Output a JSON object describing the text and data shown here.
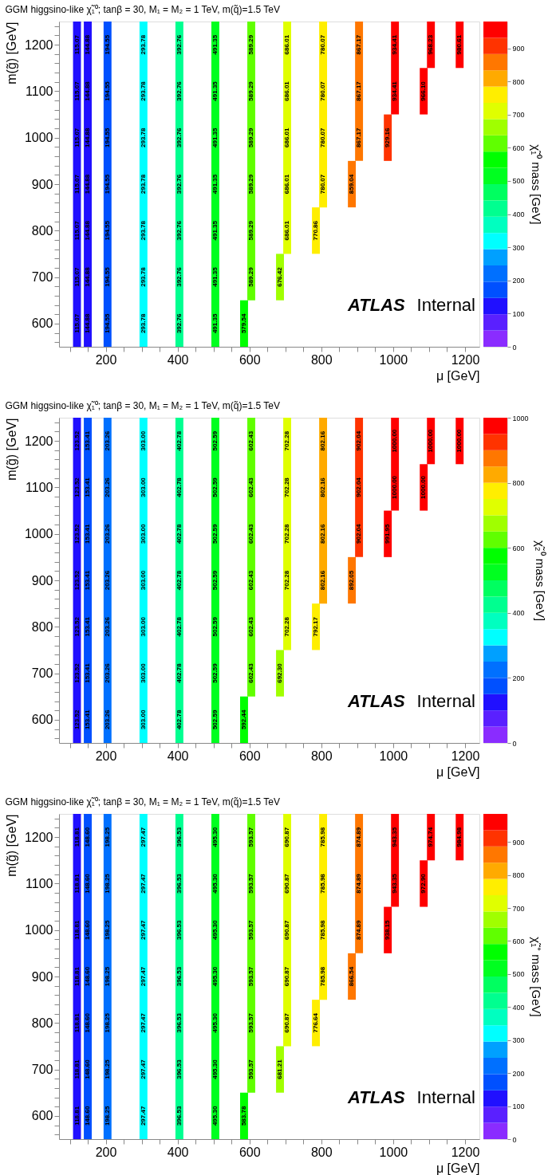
{
  "chart_data": [
    {
      "type": "bar",
      "title": "GGM higgsino-like χ̃₁⁰; tanβ = 30, M₁ = M₂ = 1 TeV, m(q̃)=1.5 TeV",
      "xlabel": "μ [GeV]",
      "ylabel": "m(g̃) [GeV]",
      "clabel": "χ̃₁⁰ mass [GeV]",
      "grid": false,
      "xlim": [
        70,
        1240
      ],
      "ylim": [
        550,
        1250
      ],
      "xticks": [
        {
          "value": 100,
          "label": null
        },
        {
          "value": 150,
          "label": null
        },
        200,
        {
          "value": 250,
          "label": null
        },
        {
          "value": 300,
          "label": null
        },
        {
          "value": 350,
          "label": null
        },
        400,
        {
          "value": 450,
          "label": null
        },
        {
          "value": 500,
          "label": null
        },
        {
          "value": 550,
          "label": null
        },
        600,
        {
          "value": 650,
          "label": null
        },
        {
          "value": 700,
          "label": null
        },
        {
          "value": 750,
          "label": null
        },
        800,
        {
          "value": 850,
          "label": null
        },
        {
          "value": 900,
          "label": null
        },
        {
          "value": 950,
          "label": null
        },
        1000,
        {
          "value": 1050,
          "label": null
        },
        {
          "value": 1100,
          "label": null
        },
        {
          "value": 1150,
          "label": null
        },
        1200
      ],
      "yticks": [
        {
          "value": 560,
          "label": null
        },
        {
          "value": 580,
          "label": null
        },
        600,
        {
          "value": 620,
          "label": null
        },
        {
          "value": 640,
          "label": null
        },
        {
          "value": 660,
          "label": null
        },
        {
          "value": 680,
          "label": null
        },
        700,
        {
          "value": 720,
          "label": null
        },
        {
          "value": 740,
          "label": null
        },
        {
          "value": 760,
          "label": null
        },
        {
          "value": 780,
          "label": null
        },
        800,
        {
          "value": 820,
          "label": null
        },
        {
          "value": 840,
          "label": null
        },
        {
          "value": 860,
          "label": null
        },
        {
          "value": 880,
          "label": null
        },
        900,
        {
          "value": 920,
          "label": null
        },
        {
          "value": 940,
          "label": null
        },
        {
          "value": 960,
          "label": null
        },
        {
          "value": 980,
          "label": null
        },
        1000,
        {
          "value": 1020,
          "label": null
        },
        {
          "value": 1040,
          "label": null
        },
        {
          "value": 1060,
          "label": null
        },
        {
          "value": 1080,
          "label": null
        },
        1100,
        {
          "value": 1120,
          "label": null
        },
        {
          "value": 1140,
          "label": null
        },
        {
          "value": 1160,
          "label": null
        },
        {
          "value": 1180,
          "label": null
        },
        1200,
        {
          "value": 1220,
          "label": null
        },
        {
          "value": 1240,
          "label": null
        }
      ],
      "clim": [
        0,
        980.61
      ],
      "cticks": [
        0,
        100,
        200,
        300,
        400,
        500,
        600,
        700,
        800,
        900
      ],
      "x": [
        120,
        150,
        205,
        305,
        405,
        505,
        585,
        605,
        685,
        705,
        785,
        805,
        885,
        905,
        985,
        1005,
        1085,
        1105,
        1185
      ],
      "base": [
        550,
        550,
        550,
        550,
        550,
        550,
        550,
        650,
        650,
        750,
        750,
        850,
        850,
        950,
        950,
        1050,
        1050,
        1150,
        1150
      ],
      "values": [
        700,
        700,
        700,
        700,
        700,
        700,
        100,
        600,
        100,
        500,
        100,
        400,
        100,
        300,
        100,
        200,
        100,
        100,
        100
      ],
      "colors": [
        "#2010ff",
        "#2010ff",
        "#0050ff",
        "#00ffff",
        "#00ff90",
        "#00ff20",
        "#00ff00",
        "#60ff00",
        "#a0ff00",
        "#e0ff00",
        "#ffee00",
        "#ffee00",
        "#ff7700",
        "#ff7700",
        "#ff3300",
        "#ff0000",
        "#ff0000",
        "#ff0000",
        "#ff0000"
      ],
      "annotations": [
        "ATLAS Internal",
        {
          "text": "115.07",
          "x": 120,
          "y": 600
        },
        {
          "text": "115.07",
          "x": 120,
          "y": 700
        },
        {
          "text": "115.07",
          "x": 120,
          "y": 800
        },
        {
          "text": "115.07",
          "x": 120,
          "y": 900
        },
        {
          "text": "115.07",
          "x": 120,
          "y": 1000
        },
        {
          "text": "115.07",
          "x": 120,
          "y": 1100
        },
        {
          "text": "115.07",
          "x": 120,
          "y": 1200
        },
        {
          "text": "144.88",
          "x": 150,
          "y": 600
        },
        {
          "text": "144.88",
          "x": 150,
          "y": 700
        },
        {
          "text": "144.88",
          "x": 150,
          "y": 800
        },
        {
          "text": "144.88",
          "x": 150,
          "y": 900
        },
        {
          "text": "144.88",
          "x": 150,
          "y": 1000
        },
        {
          "text": "144.88",
          "x": 150,
          "y": 1100
        },
        {
          "text": "144.88",
          "x": 150,
          "y": 1200
        },
        {
          "text": "194.55",
          "x": 205,
          "y": 600
        },
        {
          "text": "194.55",
          "x": 205,
          "y": 700
        },
        {
          "text": "194.55",
          "x": 205,
          "y": 800
        },
        {
          "text": "194.55",
          "x": 205,
          "y": 900
        },
        {
          "text": "194.55",
          "x": 205,
          "y": 1000
        },
        {
          "text": "194.55",
          "x": 205,
          "y": 1100
        },
        {
          "text": "194.55",
          "x": 205,
          "y": 1200
        },
        {
          "text": "293.78",
          "x": 305,
          "y": 600
        },
        {
          "text": "293.78",
          "x": 305,
          "y": 700
        },
        {
          "text": "293.78",
          "x": 305,
          "y": 800
        },
        {
          "text": "293.78",
          "x": 305,
          "y": 900
        },
        {
          "text": "293.78",
          "x": 305,
          "y": 1000
        },
        {
          "text": "293.78",
          "x": 305,
          "y": 1100
        },
        {
          "text": "293.78",
          "x": 305,
          "y": 1200
        },
        {
          "text": "392.76",
          "x": 405,
          "y": 600
        },
        {
          "text": "392.76",
          "x": 405,
          "y": 700
        },
        {
          "text": "392.76",
          "x": 405,
          "y": 800
        },
        {
          "text": "392.76",
          "x": 405,
          "y": 900
        },
        {
          "text": "392.76",
          "x": 405,
          "y": 1000
        },
        {
          "text": "392.76",
          "x": 405,
          "y": 1100
        },
        {
          "text": "392.76",
          "x": 405,
          "y": 1200
        },
        {
          "text": "491.35",
          "x": 505,
          "y": 600
        },
        {
          "text": "491.35",
          "x": 505,
          "y": 700
        },
        {
          "text": "491.35",
          "x": 505,
          "y": 800
        },
        {
          "text": "491.35",
          "x": 505,
          "y": 900
        },
        {
          "text": "491.35",
          "x": 505,
          "y": 1000
        },
        {
          "text": "491.35",
          "x": 505,
          "y": 1100
        },
        {
          "text": "491.35",
          "x": 505,
          "y": 1200
        },
        {
          "text": "579.54",
          "x": 585,
          "y": 600
        },
        {
          "text": "589.29",
          "x": 605,
          "y": 700
        },
        {
          "text": "589.29",
          "x": 605,
          "y": 800
        },
        {
          "text": "589.29",
          "x": 605,
          "y": 900
        },
        {
          "text": "589.29",
          "x": 605,
          "y": 1000
        },
        {
          "text": "589.29",
          "x": 605,
          "y": 1100
        },
        {
          "text": "589.29",
          "x": 605,
          "y": 1200
        },
        {
          "text": "676.42",
          "x": 685,
          "y": 700
        },
        {
          "text": "686.01",
          "x": 705,
          "y": 800
        },
        {
          "text": "686.01",
          "x": 705,
          "y": 900
        },
        {
          "text": "686.01",
          "x": 705,
          "y": 1000
        },
        {
          "text": "686.01",
          "x": 705,
          "y": 1100
        },
        {
          "text": "686.01",
          "x": 705,
          "y": 1200
        },
        {
          "text": "770.86",
          "x": 785,
          "y": 800
        },
        {
          "text": "780.07",
          "x": 805,
          "y": 900
        },
        {
          "text": "780.07",
          "x": 805,
          "y": 1000
        },
        {
          "text": "780.07",
          "x": 805,
          "y": 1100
        },
        {
          "text": "780.07",
          "x": 805,
          "y": 1200
        },
        {
          "text": "859.04",
          "x": 885,
          "y": 900
        },
        {
          "text": "867.17",
          "x": 905,
          "y": 1000
        },
        {
          "text": "867.17",
          "x": 905,
          "y": 1100
        },
        {
          "text": "867.17",
          "x": 905,
          "y": 1200
        },
        {
          "text": "929.16",
          "x": 985,
          "y": 1000
        },
        {
          "text": "934.41",
          "x": 1005,
          "y": 1100
        },
        {
          "text": "934.41",
          "x": 1005,
          "y": 1200
        },
        {
          "text": "966.10",
          "x": 1085,
          "y": 1100
        },
        {
          "text": "968.23",
          "x": 1105,
          "y": 1200
        },
        {
          "text": "980.61",
          "x": 1185,
          "y": 1200
        }
      ]
    },
    {
      "type": "bar",
      "title": "GGM higgsino-like χ̃₁⁰; tanβ = 30, M₁ = M₂ = 1 TeV, m(q̃)=1.5 TeV",
      "xlabel": "μ [GeV]",
      "ylabel": "m(g̃) [GeV]",
      "clabel": "χ̃₂⁰ mass [GeV]",
      "grid": false,
      "xlim": [
        70,
        1240
      ],
      "ylim": [
        550,
        1250
      ],
      "xticks": [
        {
          "value": 100,
          "label": null
        },
        {
          "value": 150,
          "label": null
        },
        200,
        {
          "value": 250,
          "label": null
        },
        {
          "value": 300,
          "label": null
        },
        {
          "value": 350,
          "label": null
        },
        400,
        {
          "value": 450,
          "label": null
        },
        {
          "value": 500,
          "label": null
        },
        {
          "value": 550,
          "label": null
        },
        600,
        {
          "value": 650,
          "label": null
        },
        {
          "value": 700,
          "label": null
        },
        {
          "value": 750,
          "label": null
        },
        800,
        {
          "value": 850,
          "label": null
        },
        {
          "value": 900,
          "label": null
        },
        {
          "value": 950,
          "label": null
        },
        1000,
        {
          "value": 1050,
          "label": null
        },
        {
          "value": 1100,
          "label": null
        },
        {
          "value": 1150,
          "label": null
        },
        1200
      ],
      "yticks": [
        {
          "value": 560,
          "label": null
        },
        {
          "value": 580,
          "label": null
        },
        600,
        {
          "value": 620,
          "label": null
        },
        {
          "value": 640,
          "label": null
        },
        {
          "value": 660,
          "label": null
        },
        {
          "value": 680,
          "label": null
        },
        700,
        {
          "value": 720,
          "label": null
        },
        {
          "value": 740,
          "label": null
        },
        {
          "value": 760,
          "label": null
        },
        {
          "value": 780,
          "label": null
        },
        800,
        {
          "value": 820,
          "label": null
        },
        {
          "value": 840,
          "label": null
        },
        {
          "value": 860,
          "label": null
        },
        {
          "value": 880,
          "label": null
        },
        900,
        {
          "value": 920,
          "label": null
        },
        {
          "value": 940,
          "label": null
        },
        {
          "value": 960,
          "label": null
        },
        {
          "value": 980,
          "label": null
        },
        1000,
        {
          "value": 1020,
          "label": null
        },
        {
          "value": 1040,
          "label": null
        },
        {
          "value": 1060,
          "label": null
        },
        {
          "value": 1080,
          "label": null
        },
        1100,
        {
          "value": 1120,
          "label": null
        },
        {
          "value": 1140,
          "label": null
        },
        {
          "value": 1160,
          "label": null
        },
        {
          "value": 1180,
          "label": null
        },
        1200,
        {
          "value": 1220,
          "label": null
        },
        {
          "value": 1240,
          "label": null
        }
      ],
      "clim": [
        0,
        1000
      ],
      "cticks": [
        0,
        200,
        400,
        600,
        800,
        1000
      ],
      "x": [
        120,
        150,
        205,
        305,
        405,
        505,
        585,
        605,
        685,
        705,
        785,
        805,
        885,
        905,
        985,
        1005,
        1085,
        1105,
        1185
      ],
      "base": [
        550,
        550,
        550,
        550,
        550,
        550,
        550,
        650,
        650,
        750,
        750,
        850,
        850,
        950,
        950,
        1050,
        1050,
        1150,
        1150
      ],
      "values": [
        700,
        700,
        700,
        700,
        700,
        700,
        100,
        600,
        100,
        500,
        100,
        400,
        100,
        300,
        100,
        200,
        100,
        100,
        100
      ],
      "colors": [
        "#2010ff",
        "#0050ff",
        "#0070ff",
        "#00ffff",
        "#00ff90",
        "#00ff20",
        "#00ff00",
        "#60ff00",
        "#a0ff00",
        "#e0ff00",
        "#ffee00",
        "#ffaa00",
        "#ff7700",
        "#ff3300",
        "#ff0000",
        "#ff0000",
        "#ff0000",
        "#ff0000",
        "#ff0000"
      ],
      "annotations": [
        "ATLAS Internal",
        {
          "text": "123.52",
          "x": 120,
          "y": 600
        },
        {
          "text": "123.52",
          "x": 120,
          "y": 700
        },
        {
          "text": "123.52",
          "x": 120,
          "y": 800
        },
        {
          "text": "123.52",
          "x": 120,
          "y": 900
        },
        {
          "text": "123.52",
          "x": 120,
          "y": 1000
        },
        {
          "text": "123.52",
          "x": 120,
          "y": 1100
        },
        {
          "text": "123.52",
          "x": 120,
          "y": 1200
        },
        {
          "text": "153.41",
          "x": 150,
          "y": 600
        },
        {
          "text": "153.41",
          "x": 150,
          "y": 700
        },
        {
          "text": "153.41",
          "x": 150,
          "y": 800
        },
        {
          "text": "153.41",
          "x": 150,
          "y": 900
        },
        {
          "text": "153.41",
          "x": 150,
          "y": 1000
        },
        {
          "text": "153.41",
          "x": 150,
          "y": 1100
        },
        {
          "text": "153.41",
          "x": 150,
          "y": 1200
        },
        {
          "text": "203.26",
          "x": 205,
          "y": 600
        },
        {
          "text": "203.26",
          "x": 205,
          "y": 700
        },
        {
          "text": "203.26",
          "x": 205,
          "y": 800
        },
        {
          "text": "203.26",
          "x": 205,
          "y": 900
        },
        {
          "text": "203.26",
          "x": 205,
          "y": 1000
        },
        {
          "text": "203.26",
          "x": 205,
          "y": 1100
        },
        {
          "text": "203.26",
          "x": 205,
          "y": 1200
        },
        {
          "text": "303.00",
          "x": 305,
          "y": 600
        },
        {
          "text": "303.00",
          "x": 305,
          "y": 700
        },
        {
          "text": "303.00",
          "x": 305,
          "y": 800
        },
        {
          "text": "303.00",
          "x": 305,
          "y": 900
        },
        {
          "text": "303.00",
          "x": 305,
          "y": 1000
        },
        {
          "text": "303.00",
          "x": 305,
          "y": 1100
        },
        {
          "text": "303.00",
          "x": 305,
          "y": 1200
        },
        {
          "text": "402.78",
          "x": 405,
          "y": 600
        },
        {
          "text": "402.78",
          "x": 405,
          "y": 700
        },
        {
          "text": "402.78",
          "x": 405,
          "y": 800
        },
        {
          "text": "402.78",
          "x": 405,
          "y": 900
        },
        {
          "text": "402.78",
          "x": 405,
          "y": 1000
        },
        {
          "text": "402.78",
          "x": 405,
          "y": 1100
        },
        {
          "text": "402.78",
          "x": 405,
          "y": 1200
        },
        {
          "text": "502.59",
          "x": 505,
          "y": 600
        },
        {
          "text": "502.59",
          "x": 505,
          "y": 700
        },
        {
          "text": "502.59",
          "x": 505,
          "y": 800
        },
        {
          "text": "502.59",
          "x": 505,
          "y": 900
        },
        {
          "text": "502.59",
          "x": 505,
          "y": 1000
        },
        {
          "text": "502.59",
          "x": 505,
          "y": 1100
        },
        {
          "text": "502.59",
          "x": 505,
          "y": 1200
        },
        {
          "text": "592.44",
          "x": 585,
          "y": 600
        },
        {
          "text": "602.43",
          "x": 605,
          "y": 700
        },
        {
          "text": "602.43",
          "x": 605,
          "y": 800
        },
        {
          "text": "602.43",
          "x": 605,
          "y": 900
        },
        {
          "text": "602.43",
          "x": 605,
          "y": 1000
        },
        {
          "text": "602.43",
          "x": 605,
          "y": 1100
        },
        {
          "text": "602.43",
          "x": 605,
          "y": 1200
        },
        {
          "text": "692.30",
          "x": 685,
          "y": 700
        },
        {
          "text": "702.28",
          "x": 705,
          "y": 800
        },
        {
          "text": "702.28",
          "x": 705,
          "y": 900
        },
        {
          "text": "702.28",
          "x": 705,
          "y": 1000
        },
        {
          "text": "702.28",
          "x": 705,
          "y": 1100
        },
        {
          "text": "702.28",
          "x": 705,
          "y": 1200
        },
        {
          "text": "792.17",
          "x": 785,
          "y": 800
        },
        {
          "text": "802.16",
          "x": 805,
          "y": 900
        },
        {
          "text": "802.16",
          "x": 805,
          "y": 1000
        },
        {
          "text": "802.16",
          "x": 805,
          "y": 1100
        },
        {
          "text": "802.16",
          "x": 805,
          "y": 1200
        },
        {
          "text": "892.05",
          "x": 885,
          "y": 900
        },
        {
          "text": "902.04",
          "x": 905,
          "y": 1000
        },
        {
          "text": "902.04",
          "x": 905,
          "y": 1100
        },
        {
          "text": "902.04",
          "x": 905,
          "y": 1200
        },
        {
          "text": "991.95",
          "x": 985,
          "y": 1000
        },
        {
          "text": "1000.00",
          "x": 1005,
          "y": 1100
        },
        {
          "text": "1000.00",
          "x": 1005,
          "y": 1200
        },
        {
          "text": "1000.00",
          "x": 1085,
          "y": 1100
        },
        {
          "text": "1000.00",
          "x": 1105,
          "y": 1200
        },
        {
          "text": "1000.00",
          "x": 1185,
          "y": 1200
        }
      ]
    },
    {
      "type": "bar",
      "title": "GGM higgsino-like χ̃₁⁰; tanβ = 30, M₁ = M₂ = 1 TeV, m(q̃)=1.5 TeV",
      "xlabel": "μ [GeV]",
      "ylabel": "m(g̃) [GeV]",
      "clabel": "χ̃₁⁺ mass [GeV]",
      "grid": false,
      "xlim": [
        70,
        1240
      ],
      "ylim": [
        550,
        1250
      ],
      "xticks": [
        {
          "value": 100,
          "label": null
        },
        {
          "value": 150,
          "label": null
        },
        200,
        {
          "value": 250,
          "label": null
        },
        {
          "value": 300,
          "label": null
        },
        {
          "value": 350,
          "label": null
        },
        400,
        {
          "value": 450,
          "label": null
        },
        {
          "value": 500,
          "label": null
        },
        {
          "value": 550,
          "label": null
        },
        600,
        {
          "value": 650,
          "label": null
        },
        {
          "value": 700,
          "label": null
        },
        {
          "value": 750,
          "label": null
        },
        800,
        {
          "value": 850,
          "label": null
        },
        {
          "value": 900,
          "label": null
        },
        {
          "value": 950,
          "label": null
        },
        1000,
        {
          "value": 1050,
          "label": null
        },
        {
          "value": 1100,
          "label": null
        },
        {
          "value": 1150,
          "label": null
        },
        1200
      ],
      "yticks": [
        {
          "value": 560,
          "label": null
        },
        {
          "value": 580,
          "label": null
        },
        600,
        {
          "value": 620,
          "label": null
        },
        {
          "value": 640,
          "label": null
        },
        {
          "value": 660,
          "label": null
        },
        {
          "value": 680,
          "label": null
        },
        700,
        {
          "value": 720,
          "label": null
        },
        {
          "value": 740,
          "label": null
        },
        {
          "value": 760,
          "label": null
        },
        {
          "value": 780,
          "label": null
        },
        800,
        {
          "value": 820,
          "label": null
        },
        {
          "value": 840,
          "label": null
        },
        {
          "value": 860,
          "label": null
        },
        {
          "value": 880,
          "label": null
        },
        900,
        {
          "value": 920,
          "label": null
        },
        {
          "value": 940,
          "label": null
        },
        {
          "value": 960,
          "label": null
        },
        {
          "value": 980,
          "label": null
        },
        1000,
        {
          "value": 1020,
          "label": null
        },
        {
          "value": 1040,
          "label": null
        },
        {
          "value": 1060,
          "label": null
        },
        {
          "value": 1080,
          "label": null
        },
        1100,
        {
          "value": 1120,
          "label": null
        },
        {
          "value": 1140,
          "label": null
        },
        {
          "value": 1160,
          "label": null
        },
        {
          "value": 1180,
          "label": null
        },
        1200,
        {
          "value": 1220,
          "label": null
        },
        {
          "value": 1240,
          "label": null
        }
      ],
      "clim": [
        0,
        984.98
      ],
      "cticks": [
        0,
        100,
        200,
        300,
        400,
        500,
        600,
        700,
        800,
        900
      ],
      "x": [
        120,
        150,
        205,
        305,
        405,
        505,
        585,
        605,
        685,
        705,
        785,
        805,
        885,
        905,
        985,
        1005,
        1085,
        1105,
        1185
      ],
      "base": [
        550,
        550,
        550,
        550,
        550,
        550,
        550,
        650,
        650,
        750,
        750,
        850,
        850,
        950,
        950,
        1050,
        1050,
        1150,
        1150
      ],
      "values": [
        700,
        700,
        700,
        700,
        700,
        700,
        100,
        600,
        100,
        500,
        100,
        400,
        100,
        300,
        100,
        200,
        100,
        100,
        100
      ],
      "colors": [
        "#2010ff",
        "#0050ff",
        "#0070ff",
        "#00ffff",
        "#00ff90",
        "#00ff20",
        "#00ff00",
        "#60ff00",
        "#a0ff00",
        "#e0ff00",
        "#ffee00",
        "#ffee00",
        "#ff7700",
        "#ff7700",
        "#ff0000",
        "#ff0000",
        "#ff0000",
        "#ff0000",
        "#ff0000"
      ],
      "annotations": [
        "ATLAS Internal",
        {
          "text": "118.81",
          "x": 120,
          "y": 600
        },
        {
          "text": "118.81",
          "x": 120,
          "y": 700
        },
        {
          "text": "118.81",
          "x": 120,
          "y": 800
        },
        {
          "text": "118.81",
          "x": 120,
          "y": 900
        },
        {
          "text": "118.81",
          "x": 120,
          "y": 1000
        },
        {
          "text": "118.81",
          "x": 120,
          "y": 1100
        },
        {
          "text": "118.81",
          "x": 120,
          "y": 1200
        },
        {
          "text": "148.60",
          "x": 150,
          "y": 600
        },
        {
          "text": "148.60",
          "x": 150,
          "y": 700
        },
        {
          "text": "148.60",
          "x": 150,
          "y": 800
        },
        {
          "text": "148.60",
          "x": 150,
          "y": 900
        },
        {
          "text": "148.60",
          "x": 150,
          "y": 1000
        },
        {
          "text": "148.60",
          "x": 150,
          "y": 1100
        },
        {
          "text": "148.60",
          "x": 150,
          "y": 1200
        },
        {
          "text": "198.25",
          "x": 205,
          "y": 600
        },
        {
          "text": "198.25",
          "x": 205,
          "y": 700
        },
        {
          "text": "198.25",
          "x": 205,
          "y": 800
        },
        {
          "text": "198.25",
          "x": 205,
          "y": 900
        },
        {
          "text": "198.25",
          "x": 205,
          "y": 1000
        },
        {
          "text": "198.25",
          "x": 205,
          "y": 1100
        },
        {
          "text": "198.25",
          "x": 205,
          "y": 1200
        },
        {
          "text": "297.47",
          "x": 305,
          "y": 600
        },
        {
          "text": "297.47",
          "x": 305,
          "y": 700
        },
        {
          "text": "297.47",
          "x": 305,
          "y": 800
        },
        {
          "text": "297.47",
          "x": 305,
          "y": 900
        },
        {
          "text": "297.47",
          "x": 305,
          "y": 1000
        },
        {
          "text": "297.47",
          "x": 305,
          "y": 1100
        },
        {
          "text": "297.47",
          "x": 305,
          "y": 1200
        },
        {
          "text": "396.53",
          "x": 405,
          "y": 600
        },
        {
          "text": "396.53",
          "x": 405,
          "y": 700
        },
        {
          "text": "396.53",
          "x": 405,
          "y": 800
        },
        {
          "text": "396.53",
          "x": 405,
          "y": 900
        },
        {
          "text": "396.53",
          "x": 405,
          "y": 1000
        },
        {
          "text": "396.53",
          "x": 405,
          "y": 1100
        },
        {
          "text": "396.53",
          "x": 405,
          "y": 1200
        },
        {
          "text": "495.30",
          "x": 505,
          "y": 600
        },
        {
          "text": "495.30",
          "x": 505,
          "y": 700
        },
        {
          "text": "495.30",
          "x": 505,
          "y": 800
        },
        {
          "text": "495.30",
          "x": 505,
          "y": 900
        },
        {
          "text": "495.30",
          "x": 505,
          "y": 1000
        },
        {
          "text": "495.30",
          "x": 505,
          "y": 1100
        },
        {
          "text": "495.30",
          "x": 505,
          "y": 1200
        },
        {
          "text": "583.78",
          "x": 585,
          "y": 600
        },
        {
          "text": "593.57",
          "x": 605,
          "y": 700
        },
        {
          "text": "593.57",
          "x": 605,
          "y": 800
        },
        {
          "text": "593.57",
          "x": 605,
          "y": 900
        },
        {
          "text": "593.57",
          "x": 605,
          "y": 1000
        },
        {
          "text": "593.57",
          "x": 605,
          "y": 1100
        },
        {
          "text": "593.57",
          "x": 605,
          "y": 1200
        },
        {
          "text": "681.21",
          "x": 685,
          "y": 700
        },
        {
          "text": "690.87",
          "x": 705,
          "y": 800
        },
        {
          "text": "690.87",
          "x": 705,
          "y": 900
        },
        {
          "text": "690.87",
          "x": 705,
          "y": 1000
        },
        {
          "text": "690.87",
          "x": 705,
          "y": 1100
        },
        {
          "text": "690.87",
          "x": 705,
          "y": 1200
        },
        {
          "text": "776.64",
          "x": 785,
          "y": 800
        },
        {
          "text": "785.98",
          "x": 805,
          "y": 900
        },
        {
          "text": "785.98",
          "x": 805,
          "y": 1000
        },
        {
          "text": "785.98",
          "x": 805,
          "y": 1100
        },
        {
          "text": "785.98",
          "x": 805,
          "y": 1200
        },
        {
          "text": "866.54",
          "x": 885,
          "y": 900
        },
        {
          "text": "874.89",
          "x": 905,
          "y": 1000
        },
        {
          "text": "874.89",
          "x": 905,
          "y": 1100
        },
        {
          "text": "874.89",
          "x": 905,
          "y": 1200
        },
        {
          "text": "938.15",
          "x": 985,
          "y": 1000
        },
        {
          "text": "943.35",
          "x": 1005,
          "y": 1100
        },
        {
          "text": "943.35",
          "x": 1005,
          "y": 1200
        },
        {
          "text": "972.90",
          "x": 1085,
          "y": 1100
        },
        {
          "text": "974.74",
          "x": 1105,
          "y": 1200
        },
        {
          "text": "984.98",
          "x": 1185,
          "y": 1200
        }
      ]
    }
  ]
}
